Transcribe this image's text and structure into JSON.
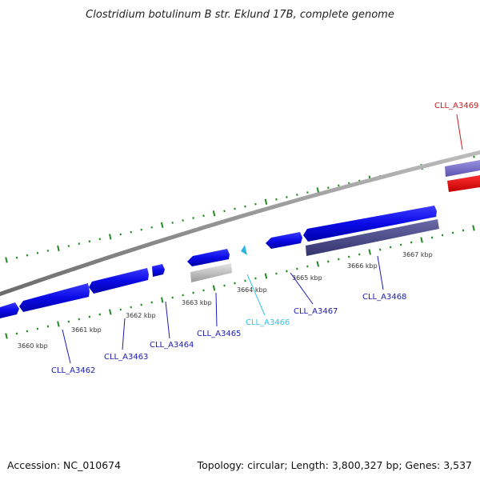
{
  "title": "Clostridium botulinum B str. Eklund 17B, complete genome",
  "footer": {
    "accession": "Accession: NC_010674",
    "summary": "Topology: circular; Length: 3,800,327 bp; Genes: 3,537"
  },
  "colors": {
    "gene_blue": "#0a0ae6",
    "label_blue": "#1b1bb4",
    "label_cyan": "#33c3e6",
    "gene_cyan": "#2fb6e0",
    "gene_red": "#e60000",
    "label_red": "#c81e1e",
    "gene_slate": "#4a4a8c",
    "gene_lavender": "#7a72cc",
    "gene_gray": "#b8b8b8",
    "backbone": "#8a8a8a",
    "tick_green": "#228b22"
  },
  "kbp_labels": [
    "3660 kbp",
    "3661 kbp",
    "3662 kbp",
    "3663 kbp",
    "3664 kbp",
    "3665 kbp",
    "3666 kbp",
    "3667 kbp"
  ],
  "gene_labels": [
    "CLL_A3462",
    "CLL_A3463",
    "CLL_A3464",
    "CLL_A3465",
    "CLL_A3466",
    "CLL_A3467",
    "CLL_A3468",
    "CLL_A3469"
  ]
}
